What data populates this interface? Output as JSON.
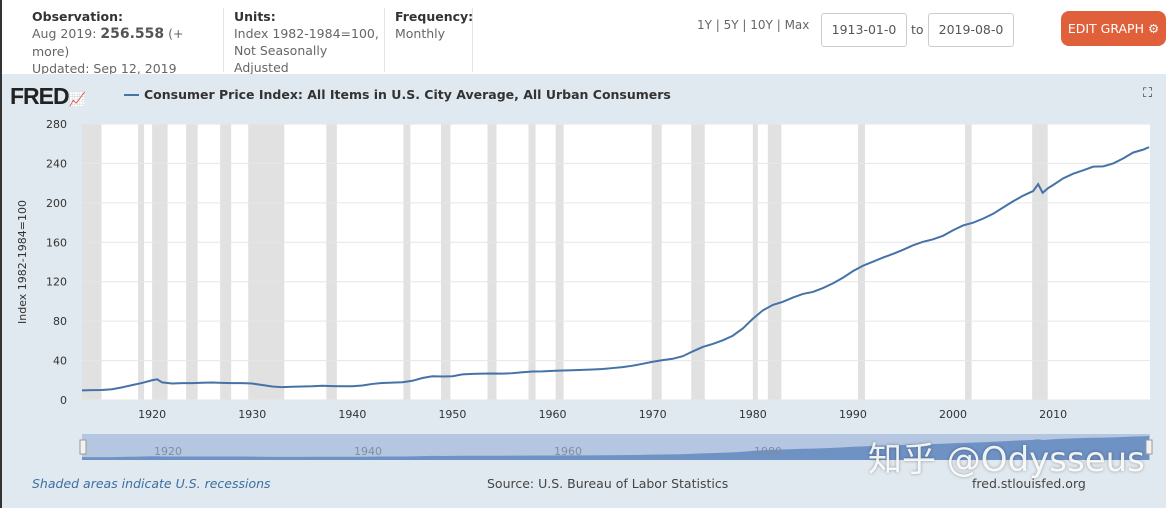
{
  "header": {
    "observation": {
      "label": "Observation:",
      "date": "Aug 2019:",
      "value": "256.558",
      "more": "(+ more)",
      "updated": "Updated: Sep 12, 2019"
    },
    "units": {
      "label": "Units:",
      "line1": "Index 1982-1984=100,",
      "line2": "Not Seasonally Adjusted"
    },
    "frequency": {
      "label": "Frequency:",
      "value": "Monthly"
    },
    "ranges": [
      "1Y",
      "5Y",
      "10Y",
      "Max"
    ],
    "start_date": "1913-01-0",
    "to": "to",
    "end_date": "2019-08-0",
    "edit_label": "EDIT GRAPH"
  },
  "logo": "FRED",
  "watermark": "知乎 @Odysseus",
  "footer": {
    "recessions": "Shaded areas indicate U.S. recessions",
    "source": "Source: U.S. Bureau of Labor Statistics",
    "site": "fred.stlouisfed.org"
  },
  "navigator_ticks": [
    "1920",
    "1940",
    "1960",
    "1980"
  ],
  "colors": {
    "line": "#4572a7",
    "recession": "#e1e1e1",
    "button": "#e0603c",
    "panel": "#e1e9f0"
  },
  "chart_data": {
    "type": "line",
    "title": "Consumer Price Index: All Items in U.S. City Average, All Urban Consumers",
    "ylabel": "Index 1982-1984=100",
    "xlim": [
      1913,
      2019.67
    ],
    "ylim": [
      0,
      280
    ],
    "yticks": [
      0,
      40,
      80,
      120,
      160,
      200,
      240,
      280
    ],
    "xticks": [
      1920,
      1930,
      1940,
      1950,
      1960,
      1970,
      1980,
      1990,
      2000,
      2010
    ],
    "grid": true,
    "legend": "top-left",
    "recessions": [
      [
        1913.0,
        1914.95
      ],
      [
        1918.6,
        1919.2
      ],
      [
        1920.0,
        1921.55
      ],
      [
        1923.4,
        1924.55
      ],
      [
        1926.8,
        1927.9
      ],
      [
        1929.6,
        1933.2
      ],
      [
        1937.4,
        1938.45
      ],
      [
        1945.1,
        1945.8
      ],
      [
        1948.85,
        1949.8
      ],
      [
        1953.5,
        1954.4
      ],
      [
        1957.6,
        1958.3
      ],
      [
        1960.3,
        1961.1
      ],
      [
        1969.9,
        1970.9
      ],
      [
        1973.85,
        1975.2
      ],
      [
        1980.0,
        1980.5
      ],
      [
        1981.5,
        1982.85
      ],
      [
        1990.5,
        1991.2
      ],
      [
        2001.2,
        2001.85
      ],
      [
        2007.9,
        2009.45
      ]
    ],
    "series": [
      {
        "name": "Consumer Price Index: All Items in U.S. City Average, All Urban Consumers",
        "points": [
          [
            1913,
            9.8
          ],
          [
            1914,
            10.0
          ],
          [
            1915,
            10.1
          ],
          [
            1916,
            10.9
          ],
          [
            1917,
            12.8
          ],
          [
            1918,
            15.1
          ],
          [
            1919,
            17.3
          ],
          [
            1920,
            20.0
          ],
          [
            1920.5,
            21.0
          ],
          [
            1921,
            17.9
          ],
          [
            1922,
            16.8
          ],
          [
            1923,
            17.1
          ],
          [
            1924,
            17.1
          ],
          [
            1925,
            17.5
          ],
          [
            1926,
            17.7
          ],
          [
            1927,
            17.4
          ],
          [
            1928,
            17.1
          ],
          [
            1929,
            17.1
          ],
          [
            1930,
            16.7
          ],
          [
            1931,
            15.2
          ],
          [
            1932,
            13.7
          ],
          [
            1933,
            13.0
          ],
          [
            1934,
            13.4
          ],
          [
            1935,
            13.7
          ],
          [
            1936,
            13.9
          ],
          [
            1937,
            14.4
          ],
          [
            1938,
            14.1
          ],
          [
            1939,
            13.9
          ],
          [
            1940,
            14.0
          ],
          [
            1941,
            14.7
          ],
          [
            1942,
            16.3
          ],
          [
            1943,
            17.3
          ],
          [
            1944,
            17.6
          ],
          [
            1945,
            18.0
          ],
          [
            1946,
            19.5
          ],
          [
            1947,
            22.3
          ],
          [
            1948,
            24.1
          ],
          [
            1949,
            23.8
          ],
          [
            1950,
            24.1
          ],
          [
            1951,
            26.0
          ],
          [
            1952,
            26.5
          ],
          [
            1953,
            26.7
          ],
          [
            1954,
            26.9
          ],
          [
            1955,
            26.8
          ],
          [
            1956,
            27.2
          ],
          [
            1957,
            28.1
          ],
          [
            1958,
            28.9
          ],
          [
            1959,
            29.1
          ],
          [
            1960,
            29.6
          ],
          [
            1961,
            29.9
          ],
          [
            1962,
            30.2
          ],
          [
            1963,
            30.6
          ],
          [
            1964,
            31.0
          ],
          [
            1965,
            31.5
          ],
          [
            1966,
            32.4
          ],
          [
            1967,
            33.4
          ],
          [
            1968,
            34.8
          ],
          [
            1969,
            36.7
          ],
          [
            1970,
            38.8
          ],
          [
            1971,
            40.5
          ],
          [
            1972,
            41.8
          ],
          [
            1973,
            44.4
          ],
          [
            1974,
            49.3
          ],
          [
            1975,
            53.8
          ],
          [
            1976,
            56.9
          ],
          [
            1977,
            60.6
          ],
          [
            1978,
            65.2
          ],
          [
            1979,
            72.6
          ],
          [
            1980,
            82.4
          ],
          [
            1981,
            90.9
          ],
          [
            1982,
            96.5
          ],
          [
            1983,
            99.6
          ],
          [
            1984,
            103.9
          ],
          [
            1985,
            107.6
          ],
          [
            1986,
            109.6
          ],
          [
            1987,
            113.6
          ],
          [
            1988,
            118.3
          ],
          [
            1989,
            124.0
          ],
          [
            1990,
            130.7
          ],
          [
            1991,
            136.2
          ],
          [
            1992,
            140.3
          ],
          [
            1993,
            144.5
          ],
          [
            1994,
            148.2
          ],
          [
            1995,
            152.4
          ],
          [
            1996,
            156.9
          ],
          [
            1997,
            160.5
          ],
          [
            1998,
            163.0
          ],
          [
            1999,
            166.6
          ],
          [
            2000,
            172.2
          ],
          [
            2001,
            177.1
          ],
          [
            2002,
            179.9
          ],
          [
            2003,
            184.0
          ],
          [
            2004,
            188.9
          ],
          [
            2005,
            195.3
          ],
          [
            2006,
            201.6
          ],
          [
            2007,
            207.3
          ],
          [
            2008,
            212.0
          ],
          [
            2008.5,
            219.0
          ],
          [
            2008.95,
            210.2
          ],
          [
            2009.5,
            215.0
          ],
          [
            2010,
            218.1
          ],
          [
            2011,
            224.9
          ],
          [
            2012,
            229.6
          ],
          [
            2013,
            233.0
          ],
          [
            2014,
            236.7
          ],
          [
            2015,
            237.0
          ],
          [
            2016,
            240.0
          ],
          [
            2017,
            245.1
          ],
          [
            2018,
            251.1
          ],
          [
            2019,
            254.0
          ],
          [
            2019.58,
            256.558
          ]
        ]
      }
    ]
  }
}
